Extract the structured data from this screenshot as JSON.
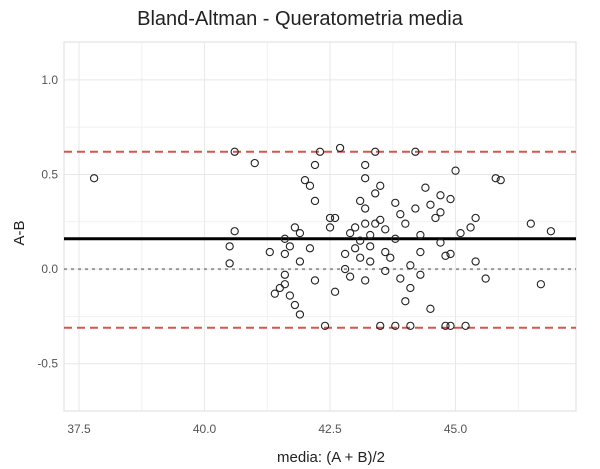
{
  "chart_data": {
    "type": "scatter",
    "title": "Bland-Altman - Queratometria media",
    "xlabel": "media: (A + B)/2",
    "ylabel": "A-B",
    "xlim": [
      37.2,
      47.4
    ],
    "ylim": [
      -0.75,
      1.2
    ],
    "xticks": [
      "37.5",
      "40.0",
      "42.5",
      "45.0"
    ],
    "yticks": [
      "-0.5",
      "0.0",
      "0.5",
      "1.0"
    ],
    "grid": true,
    "colors": {
      "points": "#222222",
      "mean_line": "#000000",
      "loa_lines": "#d9534f",
      "zero_line": "#9a9a9a",
      "grid": "#e8e8e8"
    },
    "reference_lines": {
      "mean": 0.16,
      "upper_loa": 0.62,
      "lower_loa": -0.31,
      "zero": 0.0
    },
    "points": [
      [
        37.8,
        0.48
      ],
      [
        40.6,
        0.62
      ],
      [
        42.3,
        0.62
      ],
      [
        43.4,
        0.62
      ],
      [
        44.2,
        0.62
      ],
      [
        41.0,
        0.56
      ],
      [
        40.5,
        0.12
      ],
      [
        40.5,
        0.03
      ],
      [
        40.6,
        0.2
      ],
      [
        41.3,
        0.09
      ],
      [
        41.4,
        -0.13
      ],
      [
        41.5,
        -0.1
      ],
      [
        41.6,
        0.16
      ],
      [
        41.6,
        0.08
      ],
      [
        41.6,
        -0.03
      ],
      [
        41.6,
        -0.08
      ],
      [
        41.7,
        0.12
      ],
      [
        41.7,
        -0.14
      ],
      [
        41.8,
        0.22
      ],
      [
        41.8,
        -0.19
      ],
      [
        41.9,
        0.19
      ],
      [
        41.9,
        -0.24
      ],
      [
        41.9,
        0.04
      ],
      [
        42.0,
        0.47
      ],
      [
        42.1,
        0.44
      ],
      [
        42.1,
        0.11
      ],
      [
        42.2,
        0.55
      ],
      [
        42.2,
        -0.06
      ],
      [
        42.5,
        0.27
      ],
      [
        42.5,
        0.22
      ],
      [
        42.6,
        0.27
      ],
      [
        42.6,
        -0.12
      ],
      [
        42.4,
        -0.3
      ],
      [
        42.7,
        0.64
      ],
      [
        42.8,
        0.0
      ],
      [
        42.8,
        0.08
      ],
      [
        42.9,
        0.19
      ],
      [
        42.9,
        -0.04
      ],
      [
        43.0,
        0.11
      ],
      [
        43.0,
        0.22
      ],
      [
        43.1,
        0.06
      ],
      [
        43.1,
        0.15
      ],
      [
        43.1,
        0.36
      ],
      [
        43.2,
        0.24
      ],
      [
        43.2,
        0.32
      ],
      [
        43.2,
        -0.06
      ],
      [
        43.2,
        0.48
      ],
      [
        43.2,
        0.55
      ],
      [
        43.3,
        0.04
      ],
      [
        43.3,
        0.12
      ],
      [
        43.3,
        0.18
      ],
      [
        43.4,
        0.4
      ],
      [
        43.4,
        0.24
      ],
      [
        43.5,
        0.26
      ],
      [
        43.5,
        0.44
      ],
      [
        43.5,
        -0.3
      ],
      [
        43.6,
        0.09
      ],
      [
        43.6,
        0.21
      ],
      [
        43.6,
        -0.01
      ],
      [
        43.7,
        0.06
      ],
      [
        43.8,
        -0.3
      ],
      [
        43.8,
        0.16
      ],
      [
        43.9,
        0.29
      ],
      [
        43.9,
        -0.05
      ],
      [
        44.0,
        0.24
      ],
      [
        44.0,
        -0.17
      ],
      [
        44.1,
        0.02
      ],
      [
        44.1,
        -0.1
      ],
      [
        44.1,
        -0.3
      ],
      [
        44.2,
        0.32
      ],
      [
        44.3,
        0.18
      ],
      [
        44.3,
        0.09
      ],
      [
        44.3,
        -0.03
      ],
      [
        44.4,
        0.43
      ],
      [
        44.5,
        0.34
      ],
      [
        44.5,
        -0.21
      ],
      [
        44.6,
        0.27
      ],
      [
        44.7,
        0.39
      ],
      [
        44.7,
        0.14
      ],
      [
        44.7,
        0.3
      ],
      [
        44.8,
        0.07
      ],
      [
        44.8,
        -0.3
      ],
      [
        44.9,
        0.08
      ],
      [
        44.9,
        0.37
      ],
      [
        45.0,
        0.52
      ],
      [
        45.1,
        0.19
      ],
      [
        45.2,
        -0.3
      ],
      [
        45.3,
        0.22
      ],
      [
        45.4,
        0.27
      ],
      [
        45.6,
        -0.05
      ],
      [
        45.8,
        0.48
      ],
      [
        45.9,
        0.47
      ],
      [
        46.5,
        0.24
      ],
      [
        46.7,
        -0.08
      ],
      [
        46.9,
        0.2
      ],
      [
        45.4,
        0.04
      ],
      [
        44.9,
        -0.3
      ],
      [
        42.2,
        0.36
      ],
      [
        43.8,
        0.35
      ]
    ]
  }
}
